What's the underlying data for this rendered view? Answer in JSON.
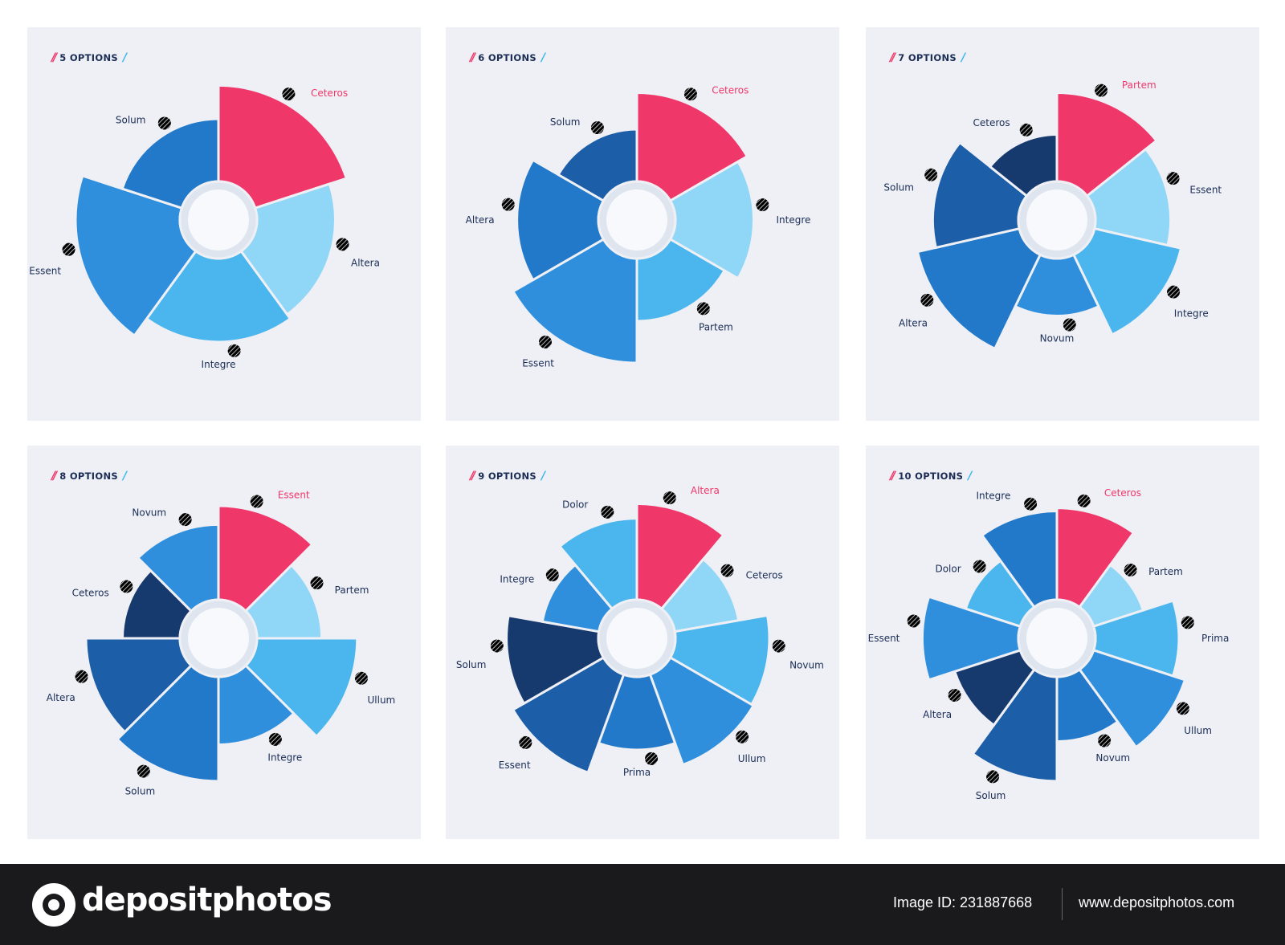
{
  "colors": {
    "pink": "#f0376a",
    "navy": "#173a6e",
    "dark_blue": "#1d5ea8",
    "mid_blue": "#2379c9",
    "blue": "#2f8fdc",
    "light_blue": "#4bb5ee",
    "pale_blue": "#8fd6f7",
    "panel_bg": "#eef0f5",
    "label_text": "#1b2d55"
  },
  "chart_data": [
    {
      "type": "pie",
      "title": "5 OPTIONS",
      "categories": [
        "Ceteros",
        "Altera",
        "Integre",
        "Essent",
        "Solum"
      ],
      "values": [
        1,
        1,
        1,
        1,
        1
      ],
      "radii": [
        0.92,
        0.75,
        0.8,
        1.0,
        0.6
      ]
    },
    {
      "type": "pie",
      "title": "6 OPTIONS",
      "categories": [
        "Ceteros",
        "Integre",
        "Partem",
        "Essent",
        "Altera",
        "Solum"
      ],
      "values": [
        1,
        1,
        1,
        1,
        1,
        1
      ],
      "radii": [
        0.85,
        0.75,
        0.6,
        1.0,
        0.78,
        0.5
      ]
    },
    {
      "type": "pie",
      "title": "7 OPTIONS",
      "categories": [
        "Partem",
        "Essent",
        "Integre",
        "Novum",
        "Altera",
        "Solum",
        "Ceteros"
      ],
      "values": [
        1,
        1,
        1,
        1,
        1,
        1,
        1
      ],
      "radii": [
        0.85,
        0.72,
        0.85,
        0.55,
        1.0,
        0.82,
        0.45
      ]
    },
    {
      "type": "pie",
      "title": "8 OPTIONS",
      "categories": [
        "Essent",
        "Partem",
        "Ullum",
        "Integre",
        "Solum",
        "Altera",
        "Ceteros",
        "Novum"
      ],
      "values": [
        1,
        1,
        1,
        1,
        1,
        1,
        1,
        1
      ],
      "radii": [
        0.9,
        0.62,
        0.96,
        0.65,
        1.0,
        0.9,
        0.55,
        0.72
      ]
    },
    {
      "type": "pie",
      "title": "9 OPTIONS",
      "categories": [
        "Altera",
        "Ceteros",
        "Novum",
        "Ullum",
        "Prima",
        "Essent",
        "Solum",
        "Integre",
        "Dolor"
      ],
      "values": [
        1,
        1,
        1,
        1,
        1,
        1,
        1,
        1,
        1
      ],
      "radii": [
        0.92,
        0.62,
        0.9,
        0.92,
        0.7,
        1.0,
        0.88,
        0.55,
        0.78
      ]
    },
    {
      "type": "pie",
      "title": "10 OPTIONS",
      "categories": [
        "Ceteros",
        "Partem",
        "Prima",
        "Ullum",
        "Novum",
        "Solum",
        "Altera",
        "Essent",
        "Dolor",
        "Integre"
      ],
      "values": [
        1,
        1,
        1,
        1,
        1,
        1,
        1,
        1,
        1,
        1
      ],
      "radii": [
        0.88,
        0.5,
        0.8,
        0.92,
        0.62,
        1.0,
        0.66,
        0.92,
        0.55,
        0.85
      ]
    }
  ],
  "footer": {
    "brand": "depositphotos",
    "image_id": "Image ID: 231887668",
    "site": "www.depositphotos.com"
  }
}
